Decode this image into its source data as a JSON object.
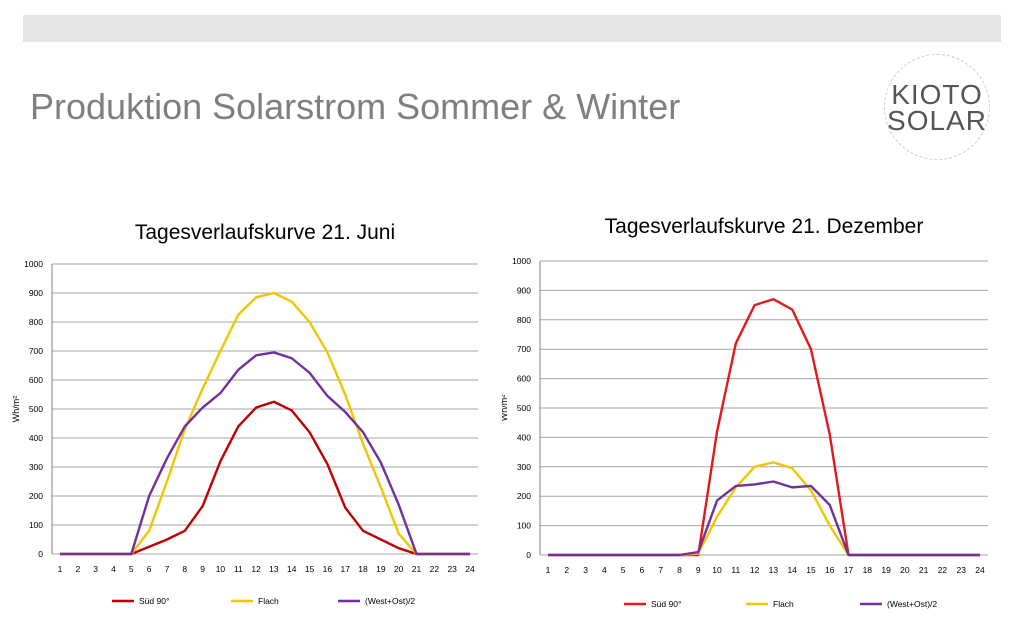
{
  "slide": {
    "title": "Produktion Solarstrom Sommer & Winter",
    "logo_line1": "KIOTO",
    "logo_line2": "SOLAR"
  },
  "chart_data": [
    {
      "type": "line",
      "title": "Tagesverlaufskurve  21. Juni",
      "xlabel": "",
      "ylabel": "Wh/m²",
      "ylim": [
        0,
        1000
      ],
      "yticks": [
        0,
        100,
        200,
        300,
        400,
        500,
        600,
        700,
        800,
        900,
        1000
      ],
      "x": [
        1,
        2,
        3,
        4,
        5,
        6,
        7,
        8,
        9,
        10,
        11,
        12,
        13,
        14,
        15,
        16,
        17,
        18,
        19,
        20,
        21,
        22,
        23,
        24
      ],
      "grid": true,
      "legend": "bottom",
      "series": [
        {
          "name": "Süd 90°",
          "color": "#c00000",
          "values": [
            0,
            0,
            0,
            0,
            0,
            25,
            50,
            80,
            165,
            320,
            440,
            505,
            525,
            495,
            420,
            310,
            160,
            80,
            50,
            20,
            0,
            0,
            0,
            0
          ]
        },
        {
          "name": "Flach",
          "color": "#f2c500",
          "values": [
            0,
            0,
            0,
            0,
            0,
            80,
            250,
            430,
            570,
            700,
            825,
            885,
            900,
            870,
            800,
            695,
            550,
            380,
            230,
            70,
            0,
            0,
            0,
            0
          ]
        },
        {
          "name": "(West+Ost)/2",
          "color": "#7030a0",
          "values": [
            0,
            0,
            0,
            0,
            0,
            200,
            330,
            440,
            505,
            555,
            635,
            685,
            695,
            675,
            625,
            545,
            490,
            420,
            315,
            170,
            0,
            0,
            0,
            0
          ]
        }
      ]
    },
    {
      "type": "line",
      "title": "Tagesverlaufskurve  21. Dezember",
      "xlabel": "",
      "ylabel": "Wh/m²",
      "ylim": [
        0,
        1000
      ],
      "yticks": [
        0,
        100,
        200,
        300,
        400,
        500,
        600,
        700,
        800,
        900,
        1000
      ],
      "x": [
        1,
        2,
        3,
        4,
        5,
        6,
        7,
        8,
        9,
        10,
        11,
        12,
        13,
        14,
        15,
        16,
        17,
        18,
        19,
        20,
        21,
        22,
        23,
        24
      ],
      "grid": true,
      "legend": "bottom",
      "series": [
        {
          "name": "Süd 90°",
          "color": "#e31a1c",
          "values": [
            0,
            0,
            0,
            0,
            0,
            0,
            0,
            0,
            0,
            420,
            720,
            850,
            870,
            835,
            700,
            410,
            0,
            0,
            0,
            0,
            0,
            0,
            0,
            0
          ]
        },
        {
          "name": "Flach",
          "color": "#f2c500",
          "values": [
            0,
            0,
            0,
            0,
            0,
            0,
            0,
            0,
            5,
            130,
            230,
            300,
            315,
            295,
            220,
            100,
            0,
            0,
            0,
            0,
            0,
            0,
            0,
            0
          ]
        },
        {
          "name": "(West+Ost)/2",
          "color": "#7030a0",
          "values": [
            0,
            0,
            0,
            0,
            0,
            0,
            0,
            0,
            10,
            185,
            235,
            240,
            250,
            230,
            235,
            170,
            0,
            0,
            0,
            0,
            0,
            0,
            0,
            0
          ]
        }
      ]
    }
  ]
}
